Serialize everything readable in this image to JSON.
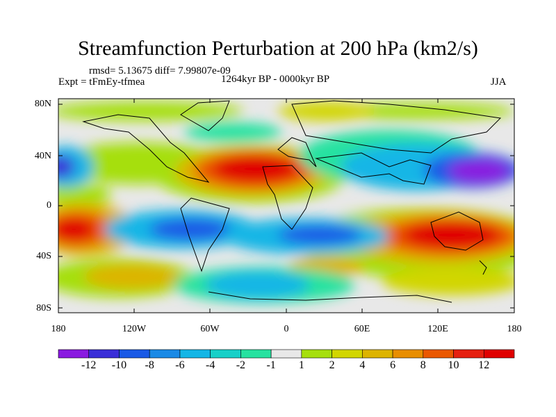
{
  "title": "Streamfunction Perturbation at 200 hPa (km2/s)",
  "stats": "rmsd= 5.13675 diff= 7.99807e-09",
  "experiment": "Expt = tFmEy-tfmea",
  "period": "1264kyr BP - 0000kyr BP",
  "season": "JJA",
  "lat_labels": [
    "80N",
    "40N",
    "0",
    "40S",
    "80S"
  ],
  "lon_labels": [
    "180",
    "120W",
    "60W",
    "0",
    "60E",
    "120E",
    "180"
  ],
  "colorbar": {
    "labels": [
      "-12",
      "-10",
      "-8",
      "-6",
      "-4",
      "-2",
      "-1",
      "1",
      "2",
      "4",
      "6",
      "8",
      "10",
      "12"
    ],
    "colors": [
      "#8a1ae0",
      "#3a2ed8",
      "#1a5ae6",
      "#1a8ae6",
      "#13b6e6",
      "#17d0c8",
      "#27e2a0",
      "#e8e8e8",
      "#a6df0e",
      "#d2d600",
      "#ddb400",
      "#e88e00",
      "#ea5800",
      "#e62010",
      "#e00000"
    ]
  }
}
